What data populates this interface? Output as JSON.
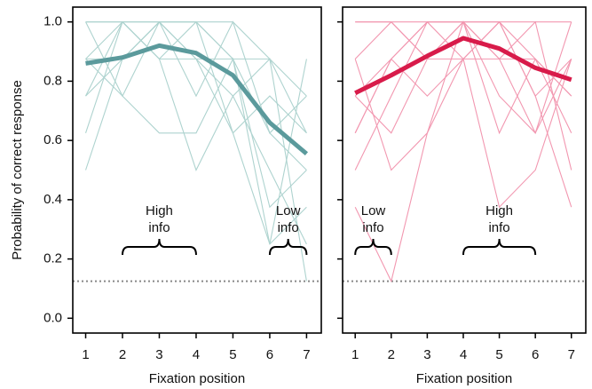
{
  "chart_data": [
    {
      "type": "line",
      "xlabel": "Fixation position",
      "ylabel": "Probability of correct response",
      "xlim": [
        0.65,
        7.4
      ],
      "ylim": [
        -0.05,
        1.05
      ],
      "xticks": [
        1,
        2,
        3,
        4,
        5,
        6,
        7
      ],
      "yticks": [
        {
          "value": 0,
          "label": "0.0"
        },
        0.2,
        0.4,
        0.6,
        0.8,
        {
          "value": 1,
          "label": "1.0"
        }
      ],
      "show_ytick_labels": true,
      "x": [
        1,
        2,
        3,
        4,
        5,
        6,
        7
      ],
      "reference_line": 0.125,
      "series": [
        {
          "color": "#aed3cf",
          "values": [
            1,
            1,
            1,
            1,
            1,
            0.875,
            0.75
          ]
        },
        {
          "color": "#aed3cf",
          "values": [
            0.875,
            1,
            0.875,
            1,
            0.875,
            0.875,
            0.625
          ]
        },
        {
          "color": "#aed3cf",
          "values": [
            0.75,
            0.875,
            1,
            0.875,
            0.875,
            0.625,
            0.5
          ]
        },
        {
          "color": "#aed3cf",
          "values": [
            0.625,
            1,
            0.875,
            0.5,
            0.75,
            0.875,
            0.125
          ]
        },
        {
          "color": "#aed3cf",
          "values": [
            0.5,
            0.875,
            1,
            1,
            0.625,
            0.25,
            0.375
          ]
        },
        {
          "color": "#aed3cf",
          "values": [
            1,
            0.75,
            1,
            0.875,
            0.75,
            0.5,
            0.25
          ]
        },
        {
          "color": "#aed3cf",
          "values": [
            0.875,
            0.75,
            0.625,
            0.625,
            0.875,
            0.25,
            0.875
          ]
        },
        {
          "color": "#aed3cf",
          "values": [
            0.75,
            1,
            1,
            0.75,
            1,
            0.625,
            0.75
          ]
        },
        {
          "color": "#aed3cf",
          "values": [
            1,
            1,
            0.875,
            0.875,
            0.625,
            0.75,
            0.625
          ]
        },
        {
          "color": "#aed3cf",
          "values": [
            0.875,
            0.875,
            1,
            1,
            0.875,
            0.375,
            0.5
          ]
        }
      ],
      "mean": {
        "color": "#5b9a9c",
        "values": [
          0.86,
          0.88,
          0.92,
          0.895,
          0.82,
          0.66,
          0.555
        ]
      },
      "annotations": [
        {
          "lines": [
            "High",
            "info"
          ],
          "x": [
            2,
            4
          ]
        },
        {
          "lines": [
            "Low",
            "info"
          ],
          "x": [
            6,
            7
          ]
        }
      ]
    },
    {
      "type": "line",
      "xlabel": "Fixation position",
      "xlim": [
        0.65,
        7.4
      ],
      "ylim": [
        -0.05,
        1.05
      ],
      "xticks": [
        1,
        2,
        3,
        4,
        5,
        6,
        7
      ],
      "yticks": [
        0,
        0.2,
        0.4,
        0.6,
        0.8,
        1
      ],
      "show_ytick_labels": false,
      "x": [
        1,
        2,
        3,
        4,
        5,
        6,
        7
      ],
      "reference_line": 0.125,
      "series": [
        {
          "color": "#f297b0",
          "values": [
            1,
            1,
            1,
            1,
            1,
            1,
            1
          ]
        },
        {
          "color": "#f297b0",
          "values": [
            0.875,
            1,
            0.875,
            0.875,
            1,
            0.875,
            0.75
          ]
        },
        {
          "color": "#f297b0",
          "values": [
            0.625,
            0.875,
            1,
            1,
            0.875,
            0.625,
            0.875
          ]
        },
        {
          "color": "#f297b0",
          "values": [
            0.5,
            0.75,
            1,
            1,
            0.875,
            1,
            0.5
          ]
        },
        {
          "color": "#f297b0",
          "values": [
            0.375,
            0.125,
            0.625,
            0.875,
            1,
            0.75,
            0.875
          ]
        },
        {
          "color": "#f297b0",
          "values": [
            0.75,
            0.625,
            0.875,
            1,
            0.75,
            0.625,
            1
          ]
        },
        {
          "color": "#f297b0",
          "values": [
            0.875,
            0.5,
            0.625,
            1,
            0.625,
            0.875,
            0.75
          ]
        },
        {
          "color": "#f297b0",
          "values": [
            0.625,
            0.875,
            0.75,
            0.875,
            0.375,
            0.5,
            0.875
          ]
        },
        {
          "color": "#f297b0",
          "values": [
            1,
            1,
            0.875,
            1,
            1,
            0.75,
            0.375
          ]
        },
        {
          "color": "#f297b0",
          "values": [
            0.75,
            0.875,
            1,
            0.875,
            0.875,
            0.875,
            0.625
          ]
        }
      ],
      "mean": {
        "color": "#d81b4a",
        "values": [
          0.76,
          0.82,
          0.885,
          0.945,
          0.91,
          0.845,
          0.805
        ]
      },
      "annotations": [
        {
          "lines": [
            "Low",
            "info"
          ],
          "x": [
            1,
            2
          ]
        },
        {
          "lines": [
            "High",
            "info"
          ],
          "x": [
            4,
            6
          ]
        }
      ]
    }
  ]
}
